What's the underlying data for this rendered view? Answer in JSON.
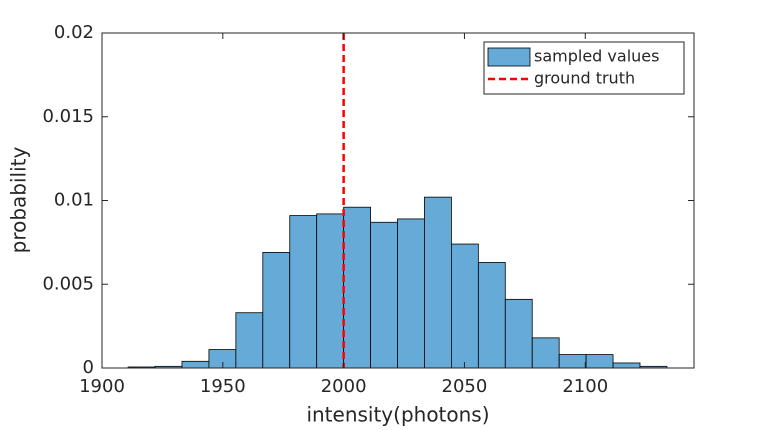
{
  "chart_data": {
    "type": "histogram",
    "xlabel": "intensity(photons)",
    "ylabel": "probability",
    "bins": [
      1910.8,
      1921.95,
      1933.1,
      1944.25,
      1955.4,
      1966.55,
      1977.7,
      1988.85,
      2000,
      2011.15,
      2022.3,
      2033.45,
      2044.6,
      2055.75,
      2066.9,
      2078.05,
      2089.2,
      2100.35,
      2111.5,
      2122.65,
      2133.8
    ],
    "series": [
      {
        "name": "sampled values",
        "color": "#66aad7",
        "values": [
          6e-05,
          0.0001,
          0.0004,
          0.0011,
          0.0033,
          0.0069,
          0.0091,
          0.0092,
          0.0096,
          0.0087,
          0.0089,
          0.0102,
          0.0074,
          0.0063,
          0.0041,
          0.0018,
          0.0008,
          0.0008,
          0.0003,
          0.0001
        ]
      }
    ],
    "reference_line": {
      "name": "ground truth",
      "x": 2000,
      "color": "#ff0000"
    },
    "xlim": [
      1900,
      2145
    ],
    "xticks": [
      1900,
      1950,
      2000,
      2050,
      2100
    ],
    "ylim": [
      0,
      0.02
    ],
    "yticks": [
      0,
      0.005,
      0.01,
      0.015,
      0.02
    ],
    "legend": "northeast"
  }
}
